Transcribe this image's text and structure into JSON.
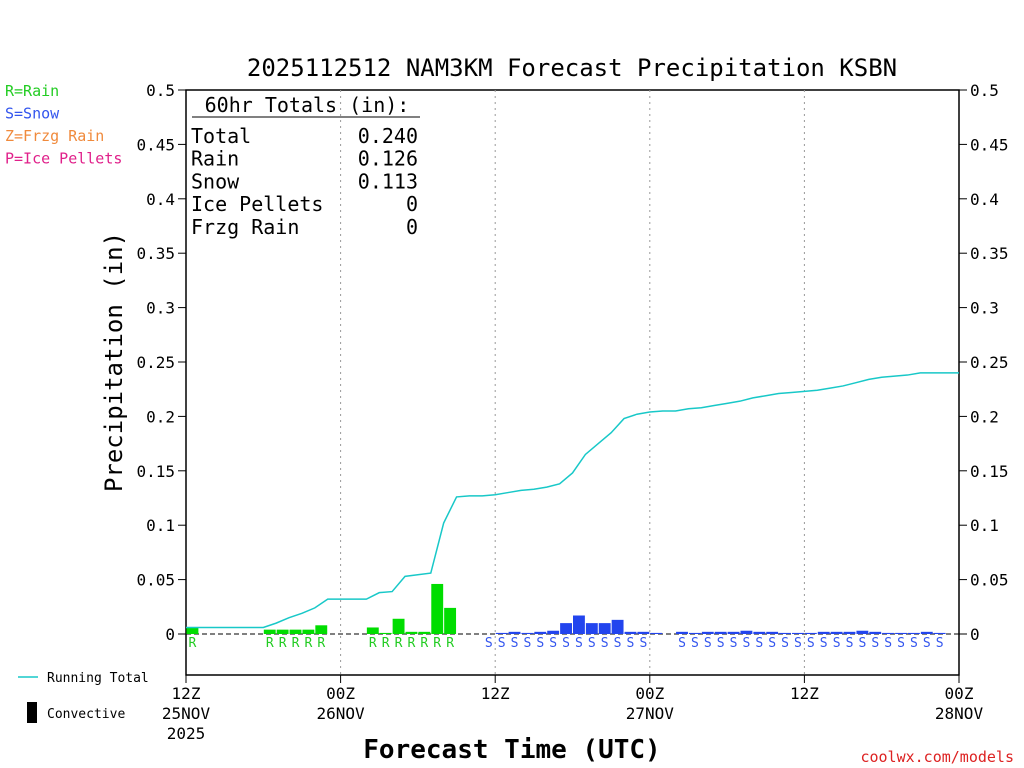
{
  "chart_data": {
    "type": "bar",
    "title": "2025112512 NAM3KM Forecast Precipitation KSBN",
    "xlabel": "Forecast Time (UTC)",
    "ylabel": "Precipitation (in)",
    "ylim": [
      0,
      0.5
    ],
    "xlim_hours": [
      0,
      60
    ],
    "yticks": [
      "0",
      "0.05",
      "0.1",
      "0.15",
      "0.2",
      "0.25",
      "0.3",
      "0.35",
      "0.4",
      "0.45",
      "0.5"
    ],
    "xticks": [
      {
        "hour": 0,
        "label": "12Z",
        "date": "25NOV",
        "year": "2025"
      },
      {
        "hour": 12,
        "label": "00Z",
        "date": "26NOV",
        "year": ""
      },
      {
        "hour": 24,
        "label": "12Z",
        "date": "",
        "year": ""
      },
      {
        "hour": 36,
        "label": "00Z",
        "date": "27NOV",
        "year": ""
      },
      {
        "hour": 48,
        "label": "12Z",
        "date": "",
        "year": ""
      },
      {
        "hour": 60,
        "label": "00Z",
        "date": "28NOV",
        "year": ""
      }
    ],
    "grid_hours": [
      12,
      24,
      36,
      48
    ],
    "legend_types": [
      {
        "code": "R",
        "label": "R=Rain",
        "color": "#22cc22"
      },
      {
        "code": "S",
        "label": "S=Snow",
        "color": "#3355ee"
      },
      {
        "code": "Z",
        "label": "Z=Frzg Rain",
        "color": "#f08a3c"
      },
      {
        "code": "P",
        "label": "P=Ice Pellets",
        "color": "#e0208a"
      }
    ],
    "legend_bottom": {
      "running_total": "Running Total",
      "convective": "Convective"
    },
    "totals": {
      "header": "60hr Totals (in):",
      "rows": [
        {
          "label": "Total",
          "value": "0.240"
        },
        {
          "label": "Rain",
          "value": "0.126"
        },
        {
          "label": "Snow",
          "value": "0.113"
        },
        {
          "label": "Ice Pellets",
          "value": "0"
        },
        {
          "label": "Frzg Rain",
          "value": "0"
        }
      ]
    },
    "series": [
      {
        "name": "Rain",
        "color": "#00dd00",
        "bars": [
          {
            "h": 1,
            "v": 0.006
          },
          {
            "h": 7,
            "v": 0.004
          },
          {
            "h": 8,
            "v": 0.004
          },
          {
            "h": 9,
            "v": 0.004
          },
          {
            "h": 10,
            "v": 0.004
          },
          {
            "h": 11,
            "v": 0.008
          },
          {
            "h": 15,
            "v": 0.006
          },
          {
            "h": 16,
            "v": 0.001
          },
          {
            "h": 17,
            "v": 0.014
          },
          {
            "h": 18,
            "v": 0.002
          },
          {
            "h": 19,
            "v": 0.002
          },
          {
            "h": 20,
            "v": 0.046
          },
          {
            "h": 21,
            "v": 0.024
          }
        ]
      },
      {
        "name": "Snow",
        "color": "#2244ee",
        "bars": [
          {
            "h": 25,
            "v": 0.001
          },
          {
            "h": 26,
            "v": 0.002
          },
          {
            "h": 27,
            "v": 0.001
          },
          {
            "h": 28,
            "v": 0.002
          },
          {
            "h": 29,
            "v": 0.003
          },
          {
            "h": 30,
            "v": 0.01
          },
          {
            "h": 31,
            "v": 0.017
          },
          {
            "h": 32,
            "v": 0.01
          },
          {
            "h": 33,
            "v": 0.01
          },
          {
            "h": 34,
            "v": 0.013
          },
          {
            "h": 35,
            "v": 0.002
          },
          {
            "h": 36,
            "v": 0.002
          },
          {
            "h": 37,
            "v": 0.001
          },
          {
            "h": 39,
            "v": 0.002
          },
          {
            "h": 40,
            "v": 0.001
          },
          {
            "h": 41,
            "v": 0.002
          },
          {
            "h": 42,
            "v": 0.002
          },
          {
            "h": 43,
            "v": 0.002
          },
          {
            "h": 44,
            "v": 0.003
          },
          {
            "h": 45,
            "v": 0.002
          },
          {
            "h": 46,
            "v": 0.002
          },
          {
            "h": 47,
            "v": 0.001
          },
          {
            "h": 48,
            "v": 0.001
          },
          {
            "h": 49,
            "v": 0.001
          },
          {
            "h": 50,
            "v": 0.002
          },
          {
            "h": 51,
            "v": 0.002
          },
          {
            "h": 52,
            "v": 0.002
          },
          {
            "h": 53,
            "v": 0.003
          },
          {
            "h": 54,
            "v": 0.002
          },
          {
            "h": 55,
            "v": 0.001
          },
          {
            "h": 56,
            "v": 0.001
          },
          {
            "h": 57,
            "v": 0.001
          },
          {
            "h": 58,
            "v": 0.002
          },
          {
            "h": 59,
            "v": 0.001
          }
        ]
      }
    ],
    "running_total": {
      "color": "#18c8c8",
      "points": [
        [
          0,
          0.006
        ],
        [
          1,
          0.006
        ],
        [
          6,
          0.006
        ],
        [
          7,
          0.01
        ],
        [
          8,
          0.015
        ],
        [
          9,
          0.019
        ],
        [
          10,
          0.024
        ],
        [
          11,
          0.032
        ],
        [
          12,
          0.032
        ],
        [
          14,
          0.032
        ],
        [
          15,
          0.038
        ],
        [
          16,
          0.039
        ],
        [
          17,
          0.053
        ],
        [
          19,
          0.056
        ],
        [
          20,
          0.102
        ],
        [
          21,
          0.126
        ],
        [
          22,
          0.127
        ],
        [
          23,
          0.127
        ],
        [
          24,
          0.128
        ],
        [
          25,
          0.13
        ],
        [
          26,
          0.132
        ],
        [
          27,
          0.133
        ],
        [
          28,
          0.135
        ],
        [
          29,
          0.138
        ],
        [
          30,
          0.148
        ],
        [
          31,
          0.165
        ],
        [
          32,
          0.175
        ],
        [
          33,
          0.185
        ],
        [
          34,
          0.198
        ],
        [
          35,
          0.202
        ],
        [
          36,
          0.204
        ],
        [
          37,
          0.205
        ],
        [
          38,
          0.205
        ],
        [
          39,
          0.207
        ],
        [
          40,
          0.208
        ],
        [
          41,
          0.21
        ],
        [
          42,
          0.212
        ],
        [
          43,
          0.214
        ],
        [
          44,
          0.217
        ],
        [
          45,
          0.219
        ],
        [
          46,
          0.221
        ],
        [
          47,
          0.222
        ],
        [
          48,
          0.223
        ],
        [
          49,
          0.224
        ],
        [
          50,
          0.226
        ],
        [
          51,
          0.228
        ],
        [
          52,
          0.231
        ],
        [
          53,
          0.234
        ],
        [
          54,
          0.236
        ],
        [
          55,
          0.237
        ],
        [
          56,
          0.238
        ],
        [
          57,
          0.24
        ],
        [
          60,
          0.24
        ]
      ]
    },
    "type_markers": [
      {
        "code": "R",
        "hours": [
          1,
          7,
          8,
          9,
          10,
          11,
          15,
          16,
          17,
          18,
          19,
          20,
          21
        ]
      },
      {
        "code": "S",
        "hours": [
          24,
          25,
          26,
          27,
          28,
          29,
          30,
          31,
          32,
          33,
          34,
          35,
          36,
          39,
          40,
          41,
          42,
          43,
          44,
          45,
          46,
          47,
          48,
          49,
          50,
          51,
          52,
          53,
          54,
          55,
          56,
          57,
          58,
          59
        ]
      }
    ]
  },
  "footer": {
    "credit": "coolwx.com/models"
  }
}
